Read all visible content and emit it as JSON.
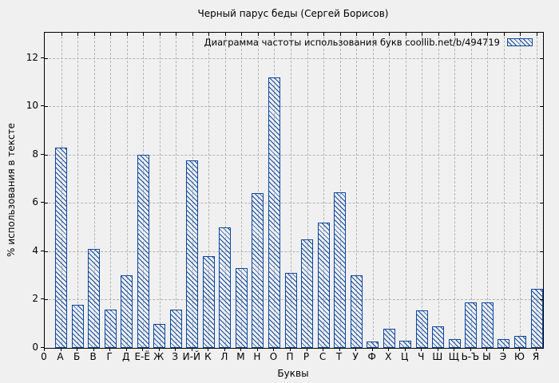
{
  "chart_data": {
    "type": "bar",
    "title": "Черный парус беды (Сергей Борисов)",
    "legend": "Диаграмма частоты использования букв  coollib.net/b/494719",
    "legend_position": "top-right-inside",
    "xlabel": "Буквы",
    "ylabel": "% использования в тексте",
    "origin_label": "0",
    "categories": [
      "А",
      "Б",
      "В",
      "Г",
      "Д",
      "Е-Ё",
      "Ж",
      "З",
      "И-Й",
      "К",
      "Л",
      "М",
      "Н",
      "О",
      "П",
      "Р",
      "С",
      "Т",
      "У",
      "Ф",
      "Х",
      "Ц",
      "Ч",
      "Ш",
      "Щ",
      "Ь-Ъ",
      "Ы",
      "Э",
      "Ю",
      "Я"
    ],
    "values": [
      8.3,
      1.8,
      4.1,
      1.6,
      3.0,
      8.0,
      1.0,
      1.6,
      7.75,
      3.8,
      5.0,
      3.3,
      6.4,
      11.2,
      3.1,
      4.5,
      5.2,
      6.45,
      3.0,
      0.25,
      0.8,
      0.3,
      1.55,
      0.9,
      0.35,
      1.9,
      1.9,
      0.35,
      0.5,
      2.45
    ],
    "y_ticks": [
      0,
      2,
      4,
      6,
      8,
      10,
      12
    ],
    "ylim": [
      0,
      13.05
    ],
    "grid": true,
    "bar_color": "#0d47a1",
    "hatch": "diagonal-down",
    "background": "#f0f0f0",
    "grid_color": "#b4b4b4"
  }
}
